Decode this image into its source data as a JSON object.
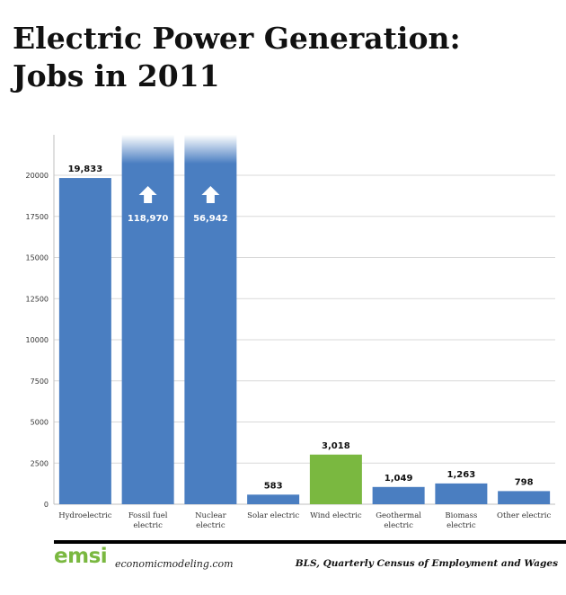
{
  "title": {
    "line1": "Electric Power Generation:",
    "line2": "Jobs in 2011"
  },
  "chart_data": {
    "type": "bar",
    "categories": [
      "Hydroelectric",
      "Fossil fuel electric",
      "Nuclear electric",
      "Solar electric",
      "Wind electric",
      "Geothermal electric",
      "Biomass electric",
      "Other electric"
    ],
    "category_lines": [
      [
        "Hydroelectric"
      ],
      [
        "Fossil fuel",
        "electric"
      ],
      [
        "Nuclear",
        "electric"
      ],
      [
        "Solar electric"
      ],
      [
        "Wind electric"
      ],
      [
        "Geothermal",
        "electric"
      ],
      [
        "Biomass",
        "electric"
      ],
      [
        "Other electric"
      ]
    ],
    "values": [
      19833,
      118970,
      56942,
      583,
      3018,
      1049,
      1263,
      798
    ],
    "value_labels": [
      "19,833",
      "118,970",
      "56,942",
      "583",
      "3,018",
      "1,049",
      "1,263",
      "798"
    ],
    "truncated": [
      false,
      true,
      true,
      false,
      false,
      false,
      false,
      false
    ],
    "colors": [
      "#4a7ec1",
      "#4a7ec1",
      "#4a7ec1",
      "#4a7ec1",
      "#7ab840",
      "#4a7ec1",
      "#4a7ec1",
      "#4a7ec1"
    ],
    "ylim": [
      0,
      22000
    ],
    "yticks": [
      0,
      2500,
      5000,
      7500,
      10000,
      12500,
      15000,
      17500,
      20000
    ],
    "grid": true,
    "legend": "none"
  },
  "footer": {
    "logo": "emsi",
    "site": "economicmodeling.com",
    "source": "BLS, Quarterly Census of Employment and Wages"
  }
}
